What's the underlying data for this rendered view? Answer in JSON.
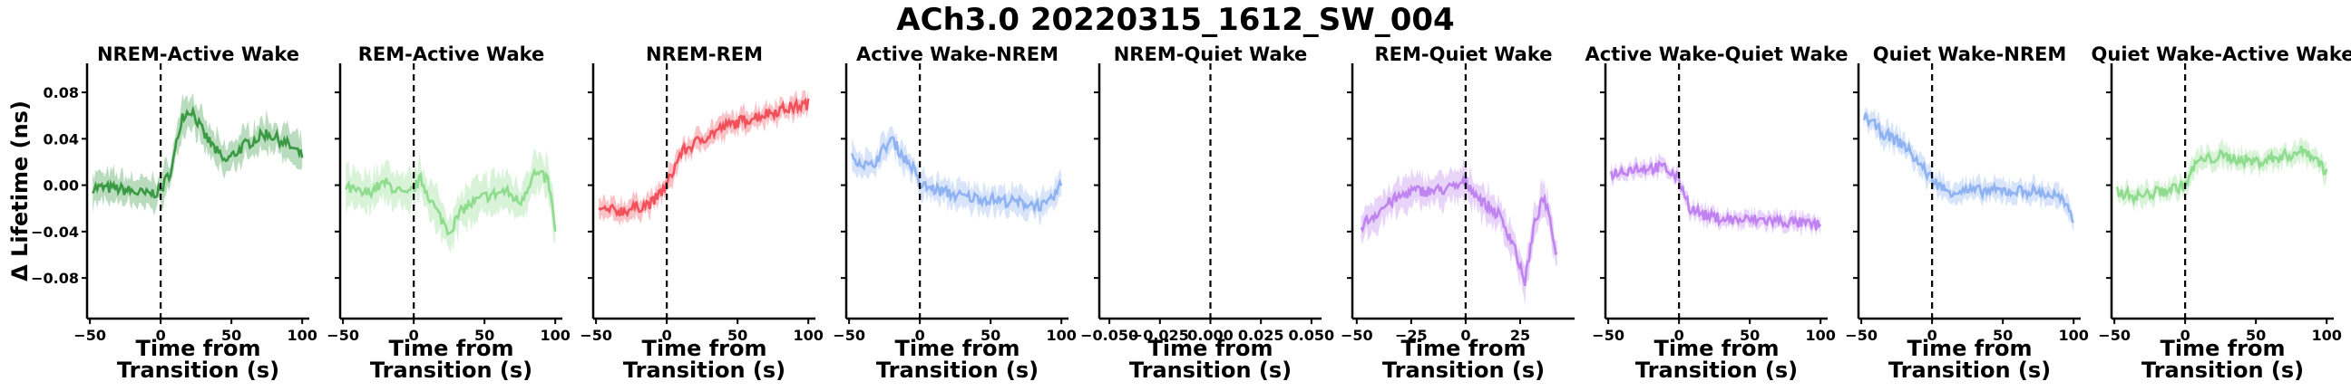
{
  "figure": {
    "title": "ACh3.0 20220315_1612_SW_004"
  },
  "chart_data": [
    {
      "type": "line",
      "title": "NREM-Active Wake",
      "color": "#3a9a44",
      "xlabel": "Time from\nTransition (s)",
      "ylabel": "Δ Lifetime (ns)",
      "xlim": [
        -52,
        105
      ],
      "xticks": [
        -50,
        0,
        50,
        100
      ],
      "ylim": [
        -0.115,
        0.105
      ],
      "yticks": [
        0.08,
        0.04,
        0.0,
        -0.04,
        -0.08
      ],
      "ytick_labels": [
        "0.08",
        "0.04",
        "0.00",
        "−0.04",
        "−0.08"
      ],
      "transition_line": 0,
      "x_start": -48,
      "x_end": 100,
      "keypoints": [
        [
          -48,
          -0.002
        ],
        [
          -30,
          -0.003
        ],
        [
          -10,
          -0.008
        ],
        [
          0,
          -0.005
        ],
        [
          8,
          0.015
        ],
        [
          15,
          0.06
        ],
        [
          22,
          0.065
        ],
        [
          30,
          0.045
        ],
        [
          45,
          0.02
        ],
        [
          60,
          0.035
        ],
        [
          75,
          0.045
        ],
        [
          90,
          0.035
        ],
        [
          100,
          0.025
        ]
      ],
      "band": 0.012
    },
    {
      "type": "line",
      "title": "REM-Active Wake",
      "color": "#8fdc8f",
      "xlabel": "Time from\nTransition (s)",
      "xlim": [
        -52,
        105
      ],
      "xticks": [
        -50,
        0,
        50,
        100
      ],
      "transition_line": 0,
      "x_start": -48,
      "x_end": 100,
      "keypoints": [
        [
          -48,
          -0.002
        ],
        [
          -35,
          -0.008
        ],
        [
          -20,
          0.002
        ],
        [
          -5,
          -0.01
        ],
        [
          5,
          0.005
        ],
        [
          15,
          -0.02
        ],
        [
          25,
          -0.04
        ],
        [
          35,
          -0.02
        ],
        [
          50,
          -0.01
        ],
        [
          65,
          -0.005
        ],
        [
          75,
          -0.015
        ],
        [
          85,
          0.01
        ],
        [
          95,
          0.005
        ],
        [
          100,
          -0.038
        ]
      ],
      "band": 0.015
    },
    {
      "type": "line",
      "title": "NREM-REM",
      "color": "#f0515b",
      "xlabel": "Time from\nTransition (s)",
      "xlim": [
        -52,
        105
      ],
      "xticks": [
        -50,
        0,
        50,
        100
      ],
      "transition_line": 0,
      "x_start": -48,
      "x_end": 100,
      "keypoints": [
        [
          -48,
          -0.022
        ],
        [
          -30,
          -0.022
        ],
        [
          -10,
          -0.015
        ],
        [
          0,
          0.0
        ],
        [
          10,
          0.028
        ],
        [
          25,
          0.04
        ],
        [
          40,
          0.05
        ],
        [
          60,
          0.058
        ],
        [
          80,
          0.065
        ],
        [
          100,
          0.07
        ]
      ],
      "band": 0.008
    },
    {
      "type": "line",
      "title": "Active Wake-NREM",
      "color": "#8fb3f2",
      "xlabel": "Time from\nTransition (s)",
      "xlim": [
        -52,
        105
      ],
      "xticks": [
        -50,
        0,
        50,
        100
      ],
      "transition_line": 0,
      "x_start": -48,
      "x_end": 100,
      "keypoints": [
        [
          -48,
          0.025
        ],
        [
          -35,
          0.015
        ],
        [
          -20,
          0.04
        ],
        [
          -12,
          0.025
        ],
        [
          -5,
          0.015
        ],
        [
          0,
          0.0
        ],
        [
          15,
          -0.005
        ],
        [
          30,
          -0.01
        ],
        [
          50,
          -0.012
        ],
        [
          70,
          -0.015
        ],
        [
          90,
          -0.018
        ],
        [
          100,
          0.0
        ]
      ],
      "band": 0.01
    },
    {
      "type": "line",
      "title": "NREM-Quiet Wake",
      "color": "#000000",
      "xlabel": "Time from\nTransition (s)",
      "xlim": [
        -0.055,
        0.055
      ],
      "xticks": [
        -0.05,
        -0.025,
        0.0,
        0.025,
        0.05
      ],
      "xtick_labels": [
        "−0.050",
        "−0.025",
        "0.000",
        "0.025",
        "0.050"
      ],
      "transition_line": 0,
      "keypoints": []
    },
    {
      "type": "line",
      "title": "REM-Quiet Wake",
      "color": "#bf84ef",
      "xlabel": "Time from\nTransition (s)",
      "xlim": [
        -52,
        50
      ],
      "xticks": [
        -50,
        -25,
        0,
        25
      ],
      "transition_line": 0,
      "x_start": -48,
      "x_end": 42,
      "keypoints": [
        [
          -48,
          -0.035
        ],
        [
          -35,
          -0.015
        ],
        [
          -25,
          -0.005
        ],
        [
          -15,
          -0.005
        ],
        [
          -5,
          -0.002
        ],
        [
          0,
          0.003
        ],
        [
          8,
          -0.015
        ],
        [
          15,
          -0.025
        ],
        [
          22,
          -0.05
        ],
        [
          27,
          -0.085
        ],
        [
          32,
          -0.03
        ],
        [
          36,
          -0.01
        ],
        [
          42,
          -0.06
        ]
      ],
      "band": 0.012
    },
    {
      "type": "line",
      "title": "Active Wake-Quiet Wake",
      "color": "#c082f0",
      "xlabel": "Time from\nTransition (s)",
      "xlim": [
        -52,
        105
      ],
      "xticks": [
        -50,
        0,
        50,
        100
      ],
      "transition_line": 0,
      "x_start": -48,
      "x_end": 100,
      "keypoints": [
        [
          -48,
          0.01
        ],
        [
          -30,
          0.015
        ],
        [
          -10,
          0.015
        ],
        [
          0,
          0.005
        ],
        [
          8,
          -0.02
        ],
        [
          20,
          -0.027
        ],
        [
          40,
          -0.03
        ],
        [
          60,
          -0.03
        ],
        [
          80,
          -0.032
        ],
        [
          100,
          -0.035
        ]
      ],
      "band": 0.006
    },
    {
      "type": "line",
      "title": "Quiet Wake-NREM",
      "color": "#8fb3f2",
      "xlabel": "Time from\nTransition (s)",
      "xlim": [
        -52,
        105
      ],
      "xticks": [
        -50,
        0,
        50,
        100
      ],
      "transition_line": 0,
      "x_start": -48,
      "x_end": 100,
      "keypoints": [
        [
          -48,
          0.06
        ],
        [
          -35,
          0.045
        ],
        [
          -20,
          0.035
        ],
        [
          -10,
          0.02
        ],
        [
          0,
          0.005
        ],
        [
          10,
          -0.005
        ],
        [
          30,
          -0.005
        ],
        [
          50,
          -0.005
        ],
        [
          70,
          -0.005
        ],
        [
          90,
          -0.01
        ],
        [
          100,
          -0.03
        ]
      ],
      "band": 0.008
    },
    {
      "type": "line",
      "title": "Quiet Wake-Active Wake",
      "color": "#8fdc8f",
      "xlabel": "Time from\nTransition (s)",
      "xlim": [
        -52,
        105
      ],
      "xticks": [
        -50,
        0,
        50,
        100
      ],
      "transition_line": 0,
      "x_start": -48,
      "x_end": 100,
      "keypoints": [
        [
          -48,
          -0.005
        ],
        [
          -35,
          -0.01
        ],
        [
          -15,
          -0.005
        ],
        [
          0,
          0.0
        ],
        [
          8,
          0.02
        ],
        [
          25,
          0.025
        ],
        [
          50,
          0.02
        ],
        [
          70,
          0.025
        ],
        [
          85,
          0.03
        ],
        [
          95,
          0.02
        ],
        [
          100,
          0.01
        ]
      ],
      "band": 0.008
    }
  ]
}
